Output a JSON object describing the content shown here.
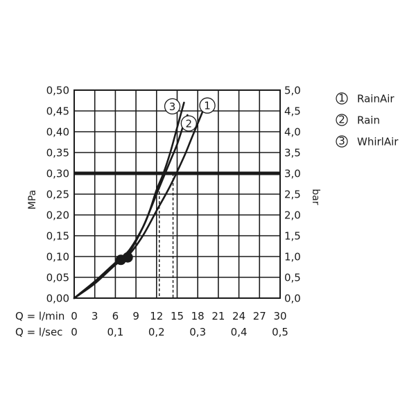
{
  "chart_data": {
    "type": "line",
    "title": "",
    "ylabel_left": "MPa",
    "ylabel_right": "bar",
    "xlabel_rows": [
      {
        "label": "Q = l/min",
        "ticks": [
          "0",
          "3",
          "6",
          "9",
          "12",
          "15",
          "18",
          "21",
          "24",
          "27",
          "30"
        ],
        "tick_values": [
          0,
          3,
          6,
          9,
          12,
          15,
          18,
          21,
          24,
          27,
          30
        ]
      },
      {
        "label": "Q = l/sec",
        "ticks": [
          "0",
          "0,1",
          "0,2",
          "0,3",
          "0,4",
          "0,5"
        ],
        "tick_values": [
          0,
          6,
          12,
          18,
          24,
          30
        ]
      }
    ],
    "xlim": [
      0,
      30
    ],
    "ylim": [
      0,
      0.5
    ],
    "yticks_left": [
      "0,00",
      "0,05",
      "0,10",
      "0,15",
      "0,20",
      "0,25",
      "0,30",
      "0,35",
      "0,40",
      "0,45",
      "0,50"
    ],
    "yticks_right": [
      "0,0",
      "0,5",
      "1,0",
      "1,5",
      "2,0",
      "2,5",
      "3,0",
      "3,5",
      "4,0",
      "4,5",
      "5,0"
    ],
    "ytick_values": [
      0,
      0.05,
      0.1,
      0.15,
      0.2,
      0.25,
      0.3,
      0.35,
      0.4,
      0.45,
      0.5
    ],
    "grid": true,
    "reference_line": {
      "y": 0.3
    },
    "markers": [
      {
        "x": 6.8,
        "y": 0.092
      },
      {
        "x": 7.8,
        "y": 0.098
      }
    ],
    "dashed_drops": [
      {
        "x": 12.4,
        "y": 0.28
      },
      {
        "x": 14.4,
        "y": 0.3
      }
    ],
    "series": [
      {
        "marker": "1",
        "x": [
          0,
          3,
          6,
          8,
          10,
          12,
          14,
          16,
          17,
          18,
          19
        ],
        "y": [
          0,
          0.035,
          0.08,
          0.105,
          0.15,
          0.21,
          0.27,
          0.34,
          0.38,
          0.42,
          0.46
        ]
      },
      {
        "marker": "2",
        "x": [
          0,
          3,
          6,
          8,
          10,
          12,
          13,
          14,
          15,
          16,
          16.5
        ],
        "y": [
          0,
          0.04,
          0.085,
          0.11,
          0.17,
          0.25,
          0.29,
          0.33,
          0.37,
          0.42,
          0.44
        ]
      },
      {
        "marker": "3",
        "x": [
          0,
          3,
          6,
          8,
          10,
          11,
          12,
          13,
          14,
          15,
          16
        ],
        "y": [
          0,
          0.04,
          0.085,
          0.115,
          0.17,
          0.21,
          0.26,
          0.3,
          0.35,
          0.41,
          0.47
        ]
      }
    ],
    "curve_markers": [
      {
        "label": "1",
        "x": 19.4,
        "y": 0.463
      },
      {
        "label": "2",
        "x": 16.7,
        "y": 0.42
      },
      {
        "label": "3",
        "x": 14.3,
        "y": 0.461
      }
    ],
    "legend": {
      "placement": "right",
      "items": [
        {
          "marker": "1",
          "label": "RainAir"
        },
        {
          "marker": "2",
          "label": "Rain"
        },
        {
          "marker": "3",
          "label": "WhirlAir"
        }
      ]
    }
  }
}
